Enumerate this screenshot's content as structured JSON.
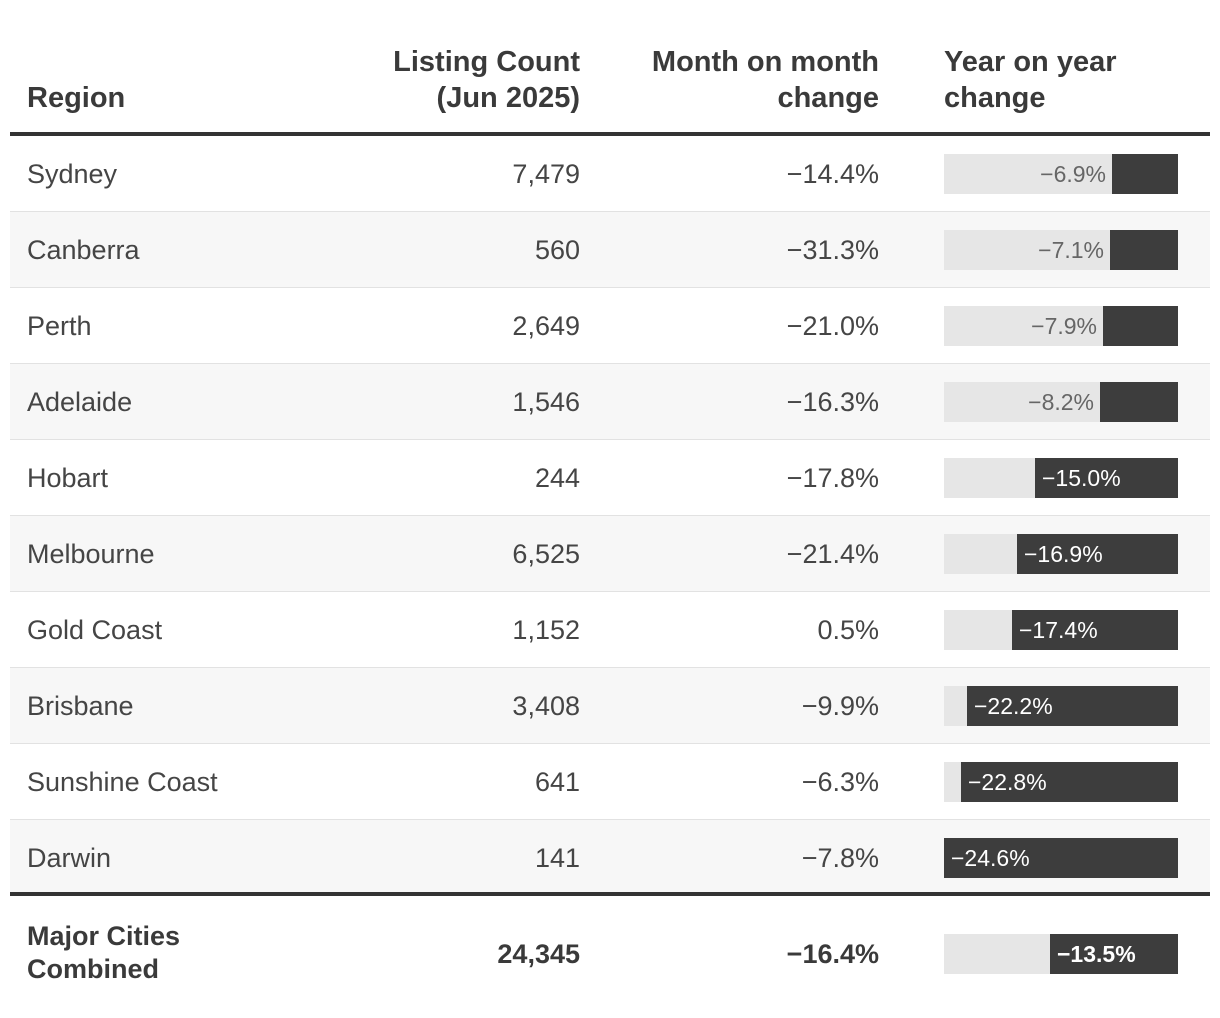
{
  "chart_data": {
    "type": "table",
    "headers": {
      "region": "Region",
      "count": "Listing Count\n(Jun 2025)",
      "mom": "Month on month\nchange",
      "yoy": "Year on year\nchange"
    },
    "rows": [
      {
        "region": "Sydney",
        "count": "7,479",
        "mom": "−14.4%",
        "yoy_label": "−6.9%",
        "yoy": -6.9
      },
      {
        "region": "Canberra",
        "count": "560",
        "mom": "−31.3%",
        "yoy_label": "−7.1%",
        "yoy": -7.1
      },
      {
        "region": "Perth",
        "count": "2,649",
        "mom": "−21.0%",
        "yoy_label": "−7.9%",
        "yoy": -7.9
      },
      {
        "region": "Adelaide",
        "count": "1,546",
        "mom": "−16.3%",
        "yoy_label": "−8.2%",
        "yoy": -8.2
      },
      {
        "region": "Hobart",
        "count": "244",
        "mom": "−17.8%",
        "yoy_label": "−15.0%",
        "yoy": -15.0
      },
      {
        "region": "Melbourne",
        "count": "6,525",
        "mom": "−21.4%",
        "yoy_label": "−16.9%",
        "yoy": -16.9
      },
      {
        "region": "Gold Coast",
        "count": "1,152",
        "mom": "0.5%",
        "yoy_label": "−17.4%",
        "yoy": -17.4
      },
      {
        "region": "Brisbane",
        "count": "3,408",
        "mom": "−9.9%",
        "yoy_label": "−22.2%",
        "yoy": -22.2
      },
      {
        "region": "Sunshine Coast",
        "count": "641",
        "mom": "−6.3%",
        "yoy_label": "−22.8%",
        "yoy": -22.8
      },
      {
        "region": "Darwin",
        "count": "141",
        "mom": "−7.8%",
        "yoy_label": "−24.6%",
        "yoy": -24.6
      }
    ],
    "total": {
      "region": "Major Cities\nCombined",
      "count": "24,345",
      "mom": "−16.4%",
      "yoy_label": "−13.5%",
      "yoy": -13.5
    },
    "yoy_scale_max_abs": 24.6,
    "colors": {
      "bar": "#3d3d3d",
      "track": "#e6e6e6",
      "rule": "#333333",
      "row_alt": "#f7f7f7"
    }
  }
}
